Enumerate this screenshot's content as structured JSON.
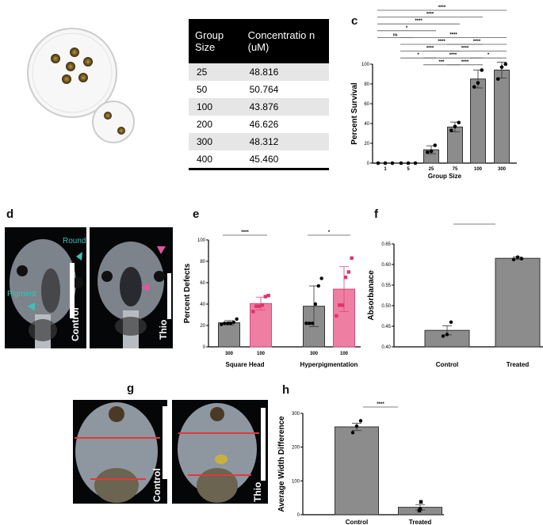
{
  "panel_labels": {
    "a": "a",
    "b": "b",
    "c": "c",
    "d": "d",
    "e": "e",
    "f": "f",
    "g": "g",
    "h": "h"
  },
  "table": {
    "headers": [
      "Group Size",
      "Concentratio n (uM)"
    ],
    "rows": [
      [
        "25",
        "48.816"
      ],
      [
        "50",
        "50.764"
      ],
      [
        "100",
        "43.876"
      ],
      [
        "200",
        "46.626"
      ],
      [
        "300",
        "48.312"
      ],
      [
        "400",
        "45.460"
      ]
    ]
  },
  "photos_d": {
    "left_caption": "Control",
    "right_caption": "Thio",
    "arrow_round": "Round",
    "arrow_pigment": "Pigment",
    "teal": "#3cc2b4",
    "pink": "#e0569a"
  },
  "photos_g": {
    "left_caption": "Control",
    "right_caption": "Thio",
    "line_color": "#e03a3a"
  },
  "colors": {
    "grey": "#8c8c8c",
    "pink": "#ee7fa2",
    "pink_dot": "#e0336e"
  },
  "chart_data": [
    {
      "id": "c",
      "type": "bar",
      "title": "",
      "xlabel": "Group Size",
      "ylabel": "Percent Survival",
      "ylim": [
        0,
        100
      ],
      "yticks": [
        0,
        20,
        40,
        60,
        80,
        100
      ],
      "categories": [
        "1",
        "5",
        "25",
        "75",
        "100",
        "300"
      ],
      "values": [
        0,
        0,
        13.5,
        36.5,
        85,
        94
      ],
      "error": [
        0,
        0,
        4,
        5,
        9,
        8
      ],
      "points": [
        [
          0,
          0,
          0
        ],
        [
          0,
          0,
          0
        ],
        [
          11,
          12,
          18
        ],
        [
          33,
          37,
          41
        ],
        [
          77,
          81,
          94
        ],
        [
          85,
          97,
          100
        ]
      ],
      "significance": [
        [
          0,
          5,
          "****"
        ],
        [
          0,
          4,
          "****"
        ],
        [
          0,
          3,
          "****"
        ],
        [
          0,
          2,
          "*"
        ],
        [
          1,
          5,
          "****"
        ],
        [
          0,
          1,
          "ns"
        ],
        [
          1,
          4,
          "****"
        ],
        [
          3,
          5,
          "****"
        ],
        [
          1,
          3,
          "****"
        ],
        [
          2,
          5,
          "****"
        ],
        [
          1,
          2,
          "*"
        ],
        [
          2,
          4,
          "****"
        ],
        [
          4,
          5,
          "*"
        ],
        [
          2,
          3,
          "***"
        ],
        [
          3,
          4,
          "****"
        ]
      ]
    },
    {
      "id": "e",
      "type": "bar",
      "xlabel": "",
      "ylabel": "Percent Defects",
      "ylim": [
        0,
        100
      ],
      "yticks": [
        0,
        20,
        40,
        60,
        80,
        100
      ],
      "categories": [
        "300",
        "100",
        "300",
        "100"
      ],
      "groups": [
        "Square Head",
        "Hyperpigmentation"
      ],
      "series_color": [
        "grey",
        "pink",
        "grey",
        "pink"
      ],
      "values": [
        22.5,
        40.5,
        38,
        54
      ],
      "error": [
        2,
        6,
        19,
        21
      ],
      "points": [
        [
          21,
          22,
          22,
          22,
          23,
          26
        ],
        [
          33,
          38,
          38,
          39,
          47,
          48
        ],
        [
          22,
          22,
          22,
          40,
          57,
          64
        ],
        [
          29,
          39,
          39,
          65,
          70,
          83
        ]
      ],
      "significance": [
        [
          0,
          1,
          "****"
        ],
        [
          2,
          3,
          "*"
        ]
      ]
    },
    {
      "id": "f",
      "type": "bar",
      "xlabel": "",
      "ylabel": "Absorbanace",
      "ylim": [
        0.4,
        0.65
      ],
      "yticks": [
        0.4,
        0.45,
        0.5,
        0.55,
        0.6,
        0.65
      ],
      "categories": [
        "Control",
        "Treated"
      ],
      "values": [
        0.44,
        0.615
      ],
      "error": [
        0.011,
        0.003
      ],
      "points": [
        [
          0.426,
          0.43,
          0.46
        ],
        [
          0.612,
          0.618,
          0.614
        ]
      ],
      "significance": [
        [
          0,
          1,
          "**"
        ]
      ]
    },
    {
      "id": "h",
      "type": "bar",
      "xlabel": "",
      "ylabel": "Average Width Difference",
      "ylim": [
        0,
        300
      ],
      "yticks": [
        0,
        100,
        200,
        300
      ],
      "categories": [
        "Control",
        "Treated"
      ],
      "values": [
        260,
        22
      ],
      "error": [
        11,
        8
      ],
      "points": [
        [
          243,
          262,
          278
        ],
        [
          12,
          17,
          38
        ]
      ],
      "significance": [
        [
          0,
          1,
          "****"
        ]
      ]
    }
  ]
}
